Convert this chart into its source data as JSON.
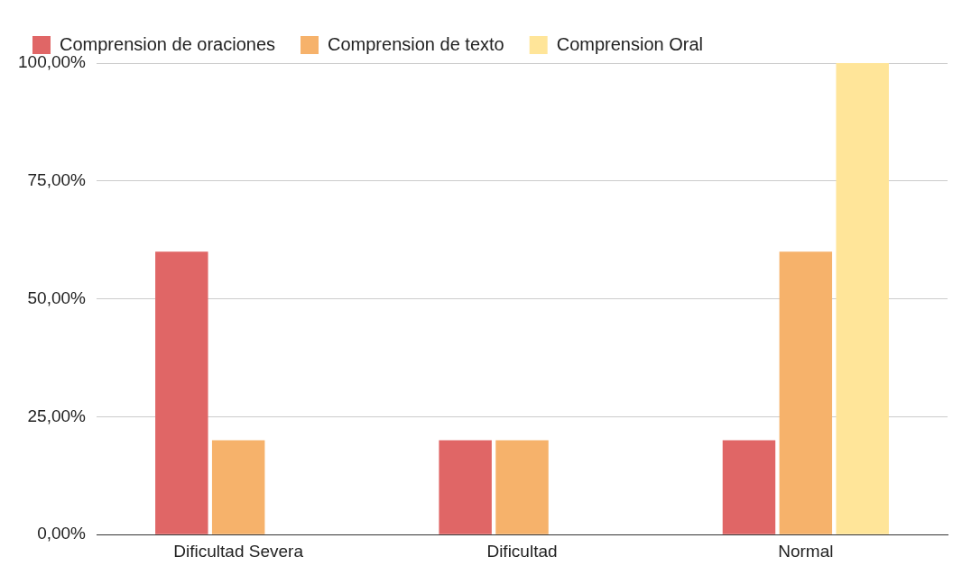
{
  "chart_data": {
    "type": "bar",
    "categories": [
      "Dificultad Severa",
      "Dificultad",
      "Normal"
    ],
    "series": [
      {
        "name": "Comprension de oraciones",
        "color": "#e06666",
        "values": [
          60,
          20,
          20
        ]
      },
      {
        "name": "Comprension de texto",
        "color": "#f6b26b",
        "values": [
          20,
          20,
          60
        ]
      },
      {
        "name": "Comprension Oral",
        "color": "#ffe599",
        "values": [
          0,
          0,
          100
        ]
      }
    ],
    "ylim": [
      0,
      100
    ],
    "yticks": [
      {
        "value": 0,
        "label": "0,00%"
      },
      {
        "value": 25,
        "label": "25,00%"
      },
      {
        "value": 50,
        "label": "50,00%"
      },
      {
        "value": 75,
        "label": "75,00%"
      },
      {
        "value": 100,
        "label": "100,00%"
      }
    ],
    "grid": "y",
    "legend": "top"
  }
}
